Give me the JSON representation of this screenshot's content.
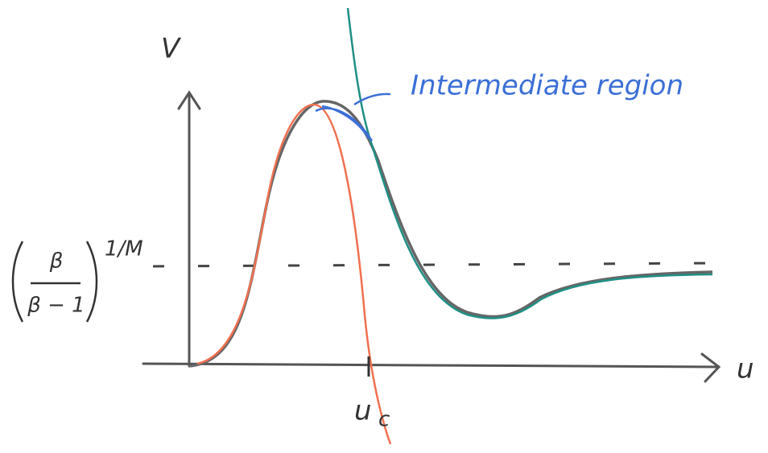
{
  "labels": {
    "y_axis": "V",
    "x_axis": "u",
    "critical_point": "u",
    "critical_point_sub": "c",
    "level": "1/M",
    "level_alt_numerator": "β",
    "level_alt_denominator": "β − 1",
    "annotation": "Intermediate region"
  }
}
